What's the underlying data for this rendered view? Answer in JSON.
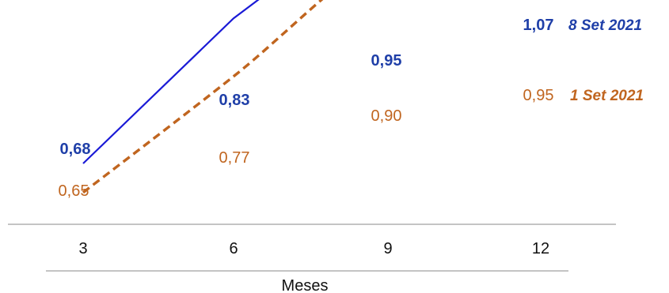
{
  "chart_data": {
    "type": "line",
    "x": [
      3,
      6,
      9,
      12
    ],
    "xlabel": "Meses",
    "ylabel": "",
    "ylim": [
      0.6,
      1.1
    ],
    "grid": false,
    "legend": "right",
    "series": [
      {
        "name": "8 Set 2021",
        "values": [
          0.68,
          0.83,
          0.95,
          1.07
        ],
        "labels": [
          "0,68",
          "0,83",
          "0,95",
          "1,07"
        ],
        "color": "#1a1ad6",
        "label_color": "#1f3fa8",
        "style": "solid"
      },
      {
        "name": "1 Set 2021",
        "values": [
          0.65,
          0.77,
          0.9,
          0.95
        ],
        "labels": [
          "0,65",
          "0,77",
          "0,90",
          "0,95"
        ],
        "color": "#c0651f",
        "label_color": "#c0651f",
        "style": "dashed"
      }
    ],
    "x_tick_labels": [
      "3",
      "6",
      "9",
      "12"
    ]
  }
}
